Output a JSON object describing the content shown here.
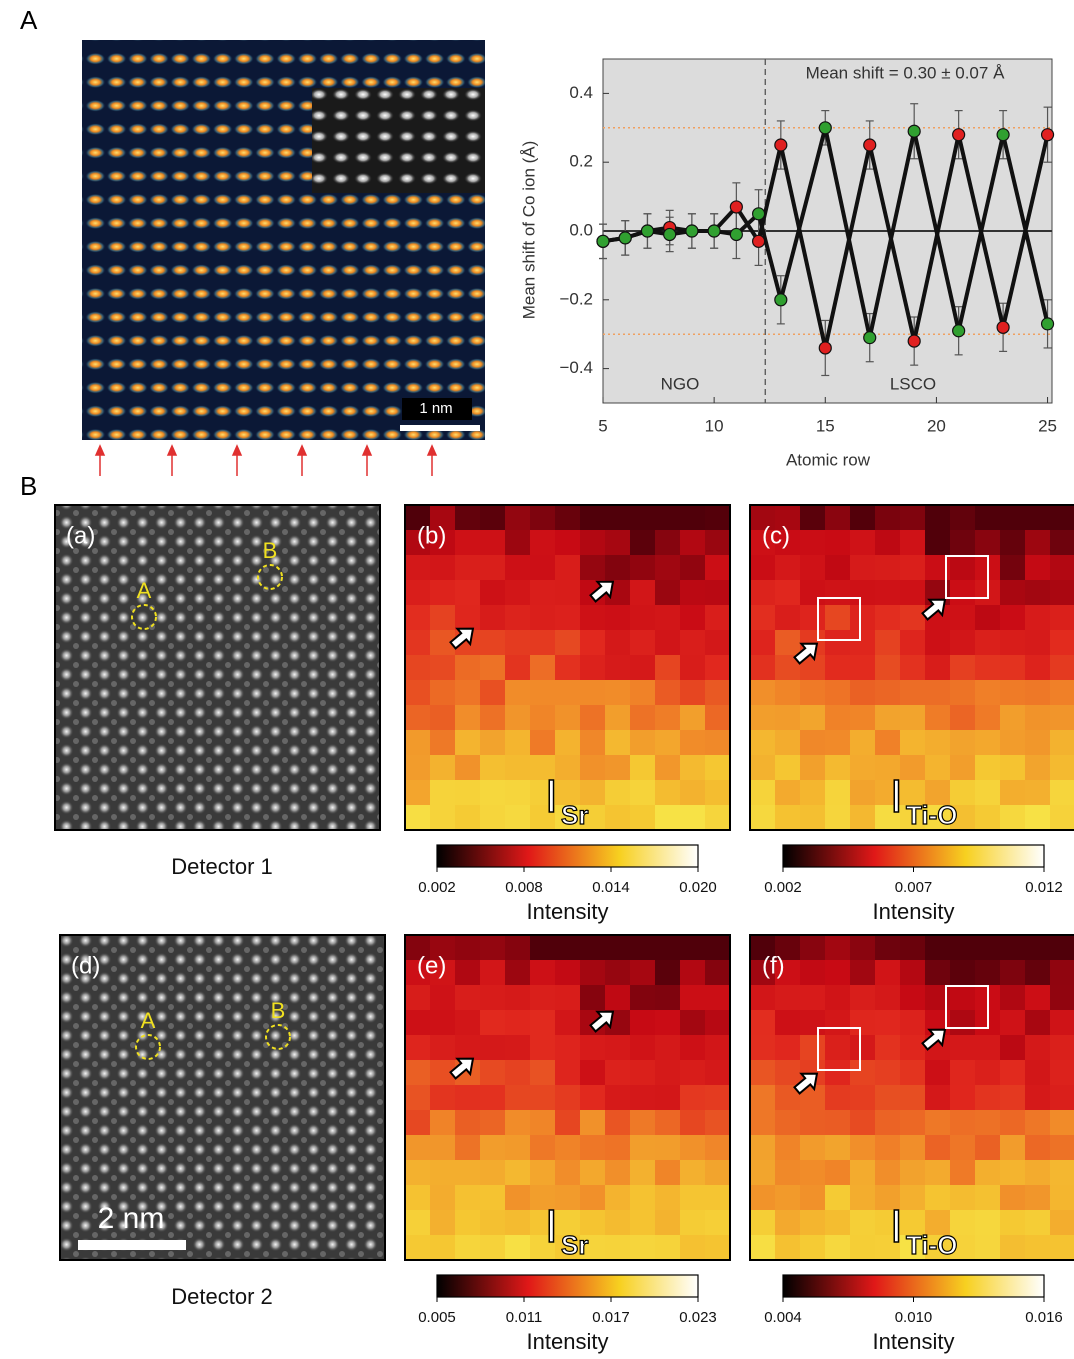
{
  "chart_data": {
    "type": "line",
    "x_label": "Atomic row",
    "y_label": "Mean shift of Co ion (Å)",
    "annotation": "Mean shift = 0.30 ± 0.07 Å",
    "region_labels": [
      "NGO",
      "LSCO"
    ],
    "interface_x": 12.3,
    "reference_lines": [
      0.3,
      -0.3
    ],
    "background": "#dcdcdc",
    "x": [
      5,
      6,
      7,
      8,
      9,
      10,
      11,
      12,
      13,
      15,
      17,
      19,
      21,
      23,
      25
    ],
    "series": [
      {
        "color": "#e02020",
        "values": [
          -0.03,
          -0.02,
          0.0,
          0.01,
          0.0,
          0.0,
          0.07,
          -0.03,
          0.25,
          -0.34,
          0.25,
          -0.32,
          0.28,
          -0.28,
          0.28
        ],
        "errors": [
          0.05,
          0.05,
          0.05,
          0.05,
          0.05,
          0.05,
          0.07,
          0.07,
          0.07,
          0.08,
          0.07,
          0.07,
          0.07,
          0.07,
          0.08
        ]
      },
      {
        "color": "#30a030",
        "values": [
          -0.03,
          -0.02,
          0.0,
          -0.01,
          0.0,
          0.0,
          -0.01,
          0.05,
          -0.2,
          0.3,
          -0.31,
          0.29,
          -0.29,
          0.28,
          -0.27
        ],
        "errors": [
          0.05,
          0.05,
          0.05,
          0.05,
          0.05,
          0.05,
          0.07,
          0.07,
          0.07,
          0.05,
          0.07,
          0.08,
          0.07,
          0.07,
          0.07
        ]
      }
    ],
    "xlim": [
      5,
      25.2
    ],
    "ylim": [
      -0.5,
      0.5
    ],
    "xticks": [
      5,
      10,
      15,
      20,
      25
    ],
    "yticks": [
      {
        "value": -0.4,
        "label": "−0.4"
      },
      {
        "value": -0.2,
        "label": "−0.2"
      },
      {
        "value": 0,
        "label": "0.0"
      },
      0.2,
      0.4
    ]
  },
  "figure": {
    "panel_labels": [
      "A",
      "B"
    ],
    "image_scale_bar": "1 nm",
    "rows": [
      {
        "caption": "Detector 1",
        "image": {
          "label": "(a)",
          "markers": [
            "A",
            "B"
          ]
        },
        "maps": [
          {
            "label": "(b)",
            "symbol": "I",
            "subscript": "Sr",
            "colorbar": {
              "ticks": [
                "0.002",
                "0.008",
                "0.014",
                "0.020"
              ],
              "label": "Intensity"
            }
          },
          {
            "label": "(c)",
            "symbol": "I",
            "subscript": "Ti-O",
            "colorbar": {
              "ticks": [
                "0.002",
                "0.007",
                "0.012"
              ],
              "label": "Intensity"
            }
          }
        ]
      },
      {
        "caption": "Detector 2",
        "image": {
          "label": "(d)",
          "markers": [
            "A",
            "B"
          ],
          "scale_bar": "2 nm"
        },
        "maps": [
          {
            "label": "(e)",
            "symbol": "I",
            "subscript": "Sr",
            "colorbar": {
              "ticks": [
                "0.005",
                "0.011",
                "0.017",
                "0.023"
              ],
              "label": "Intensity"
            }
          },
          {
            "label": "(f)",
            "symbol": "I",
            "subscript": "Ti-O",
            "colorbar": {
              "ticks": [
                "0.004",
                "0.010",
                "0.016"
              ],
              "label": "Intensity"
            }
          }
        ]
      }
    ]
  }
}
